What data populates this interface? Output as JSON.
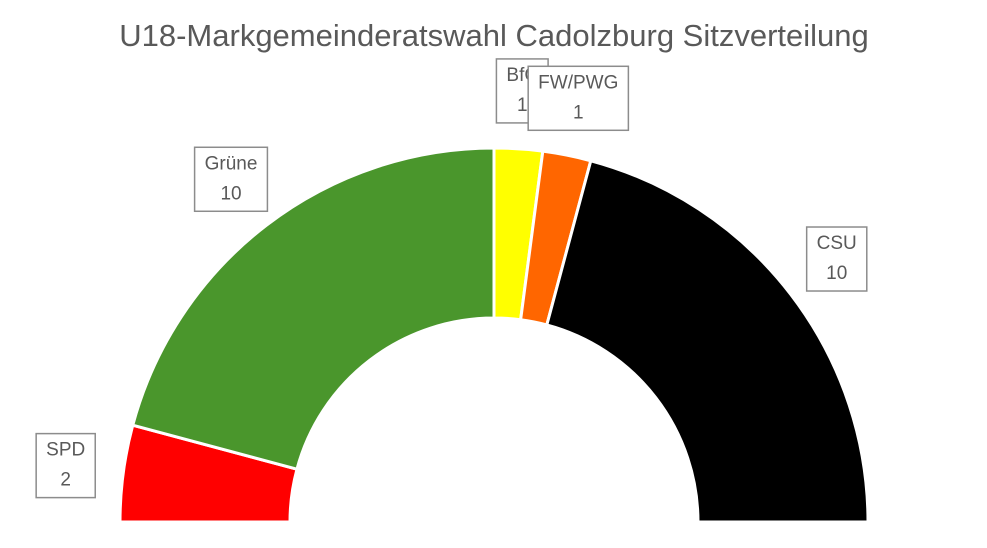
{
  "chart_data": {
    "type": "doughnut",
    "title": "U18-Markgemeinderatswahl Cadolzburg Sitzverteilung",
    "categories": [
      "SPD",
      "Grüne",
      "BfC",
      "FW/PWG",
      "CSU"
    ],
    "values": [
      2,
      10,
      1,
      1,
      10
    ],
    "colors": [
      "#ff0000",
      "#4a962c",
      "#ffff00",
      "#ff6600",
      "#000000"
    ]
  }
}
